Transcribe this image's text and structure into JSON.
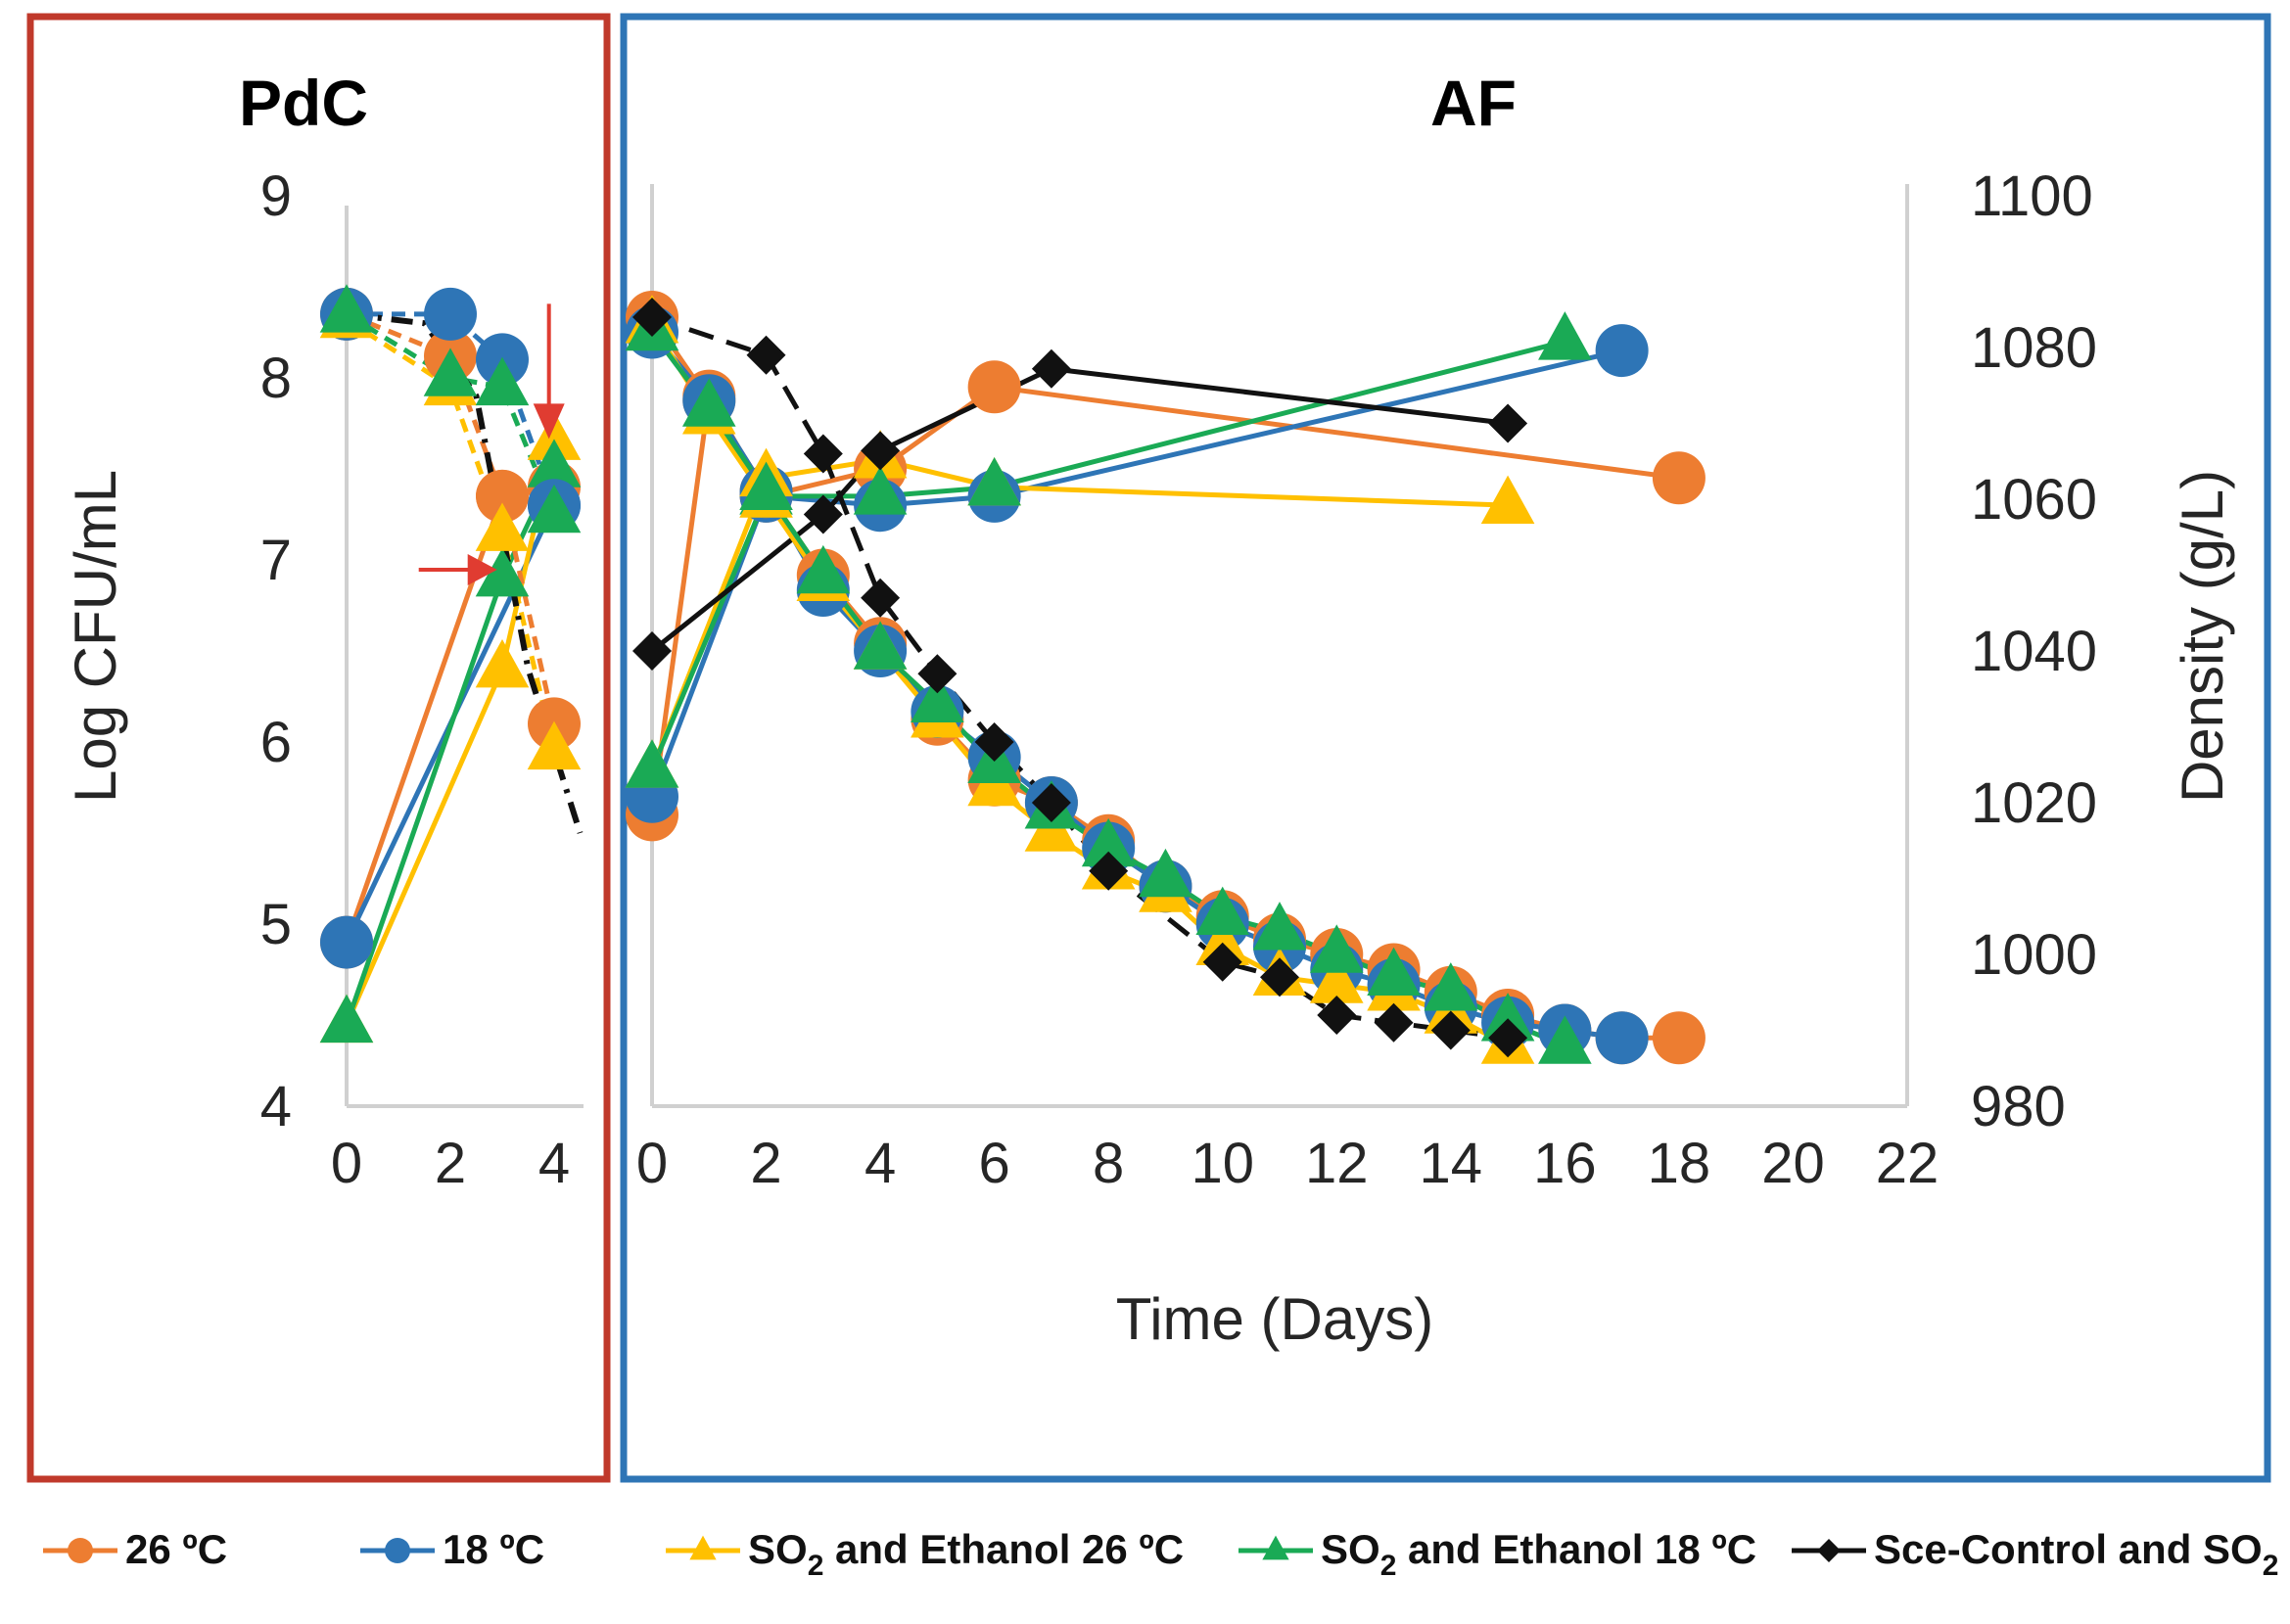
{
  "panels": {
    "left": {
      "title": "PdC",
      "frame_color": "#C0392B"
    },
    "right": {
      "title": "AF",
      "frame_color": "#2E75B6"
    }
  },
  "chart_data": [
    {
      "type": "line",
      "title": "PdC",
      "xlabel": "",
      "ylabel": "Log CFU/mL",
      "x_ticks": [
        "0",
        "2",
        "4"
      ],
      "y_ticks": [
        "4",
        "5",
        "6",
        "7",
        "8",
        "9"
      ],
      "xlim": [
        0,
        4.5
      ],
      "ylim": [
        4,
        9
      ],
      "grid": false,
      "series": [
        {
          "name": "26 ºC",
          "role": "cfu",
          "color": "#ED7D31",
          "marker": "circle",
          "points": [
            [
              0,
              4.9
            ],
            [
              3,
              7.35
            ],
            [
              4,
              7.4
            ]
          ]
        },
        {
          "name": "18 ºC",
          "role": "cfu",
          "color": "#2E75B6",
          "marker": "circle",
          "points": [
            [
              0,
              4.9
            ],
            [
              4,
              7.3
            ]
          ]
        },
        {
          "name": "SO2 and Ethanol 26 ºC",
          "role": "cfu",
          "color": "#FFC000",
          "marker": "triangle",
          "points": [
            [
              0,
              4.45
            ],
            [
              3,
              6.4
            ],
            [
              4,
              7.65
            ]
          ]
        },
        {
          "name": "SO2 and Ethanol 18 ºC",
          "role": "cfu",
          "color": "#1AAA55",
          "marker": "triangle",
          "points": [
            [
              0,
              4.45
            ],
            [
              3,
              6.9
            ],
            [
              4,
              7.5
            ]
          ]
        },
        {
          "name": "26 ºC",
          "role": "density",
          "color": "#ED7D31",
          "marker": "circle",
          "points": [
            [
              0,
              8.35
            ],
            [
              2,
              8.12
            ],
            [
              3,
              7.35
            ],
            [
              4,
              6.1
            ]
          ]
        },
        {
          "name": "18 ºC",
          "role": "density",
          "color": "#2E75B6",
          "marker": "circle",
          "points": [
            [
              0,
              8.35
            ],
            [
              2,
              8.35
            ],
            [
              3,
              8.1
            ],
            [
              4,
              7.3
            ]
          ]
        },
        {
          "name": "SO2 and Ethanol 26 ºC",
          "role": "density",
          "color": "#FFC000",
          "marker": "triangle",
          "points": [
            [
              0,
              8.32
            ],
            [
              2,
              7.95
            ],
            [
              3,
              7.15
            ],
            [
              4,
              5.95
            ]
          ]
        },
        {
          "name": "SO2 and Ethanol 18 ºC",
          "role": "density",
          "color": "#1AAA55",
          "marker": "triangle",
          "points": [
            [
              0,
              8.35
            ],
            [
              2,
              8.0
            ],
            [
              3,
              7.95
            ],
            [
              4,
              7.25
            ]
          ]
        },
        {
          "name": "Sce-Control and SO2",
          "role": "density",
          "color": "#111111",
          "marker": "none",
          "points": [
            [
              0,
              8.35
            ],
            [
              1.5,
              8.3
            ],
            [
              2.5,
              7.9
            ],
            [
              3.5,
              6.4
            ],
            [
              4.5,
              5.5
            ]
          ]
        }
      ],
      "annotations": [
        {
          "type": "arrow",
          "direction": "right",
          "color": "#E03C31",
          "at": [
            2.9,
            7.0
          ]
        },
        {
          "type": "arrow",
          "direction": "down",
          "color": "#E03C31",
          "at": [
            3.9,
            7.6
          ]
        }
      ]
    },
    {
      "type": "line",
      "title": "AF",
      "xlabel": "Time (Days)",
      "ylabel": "Density (g/L)",
      "x_ticks": [
        "0",
        "2",
        "4",
        "6",
        "8",
        "10",
        "12",
        "14",
        "16",
        "18",
        "20",
        "22"
      ],
      "y2_ticks": [
        "980",
        "1000",
        "1020",
        "1040",
        "1060",
        "1080",
        "1100"
      ],
      "xlim": [
        0,
        22
      ],
      "ylim": [
        4,
        9
      ],
      "y2lim": [
        980,
        1100
      ],
      "grid": false,
      "series": [
        {
          "name": "26 ºC",
          "role": "cfu",
          "axis": "left",
          "color": "#ED7D31",
          "marker": "circle",
          "points": [
            [
              0,
              5.6
            ],
            [
              1,
              7.9
            ],
            [
              2,
              7.35
            ],
            [
              4,
              7.5
            ],
            [
              6,
              7.95
            ],
            [
              18,
              7.45
            ]
          ]
        },
        {
          "name": "18 ºC",
          "role": "cfu",
          "axis": "left",
          "color": "#2E75B6",
          "marker": "circle",
          "points": [
            [
              0,
              5.7
            ],
            [
              2,
              7.35
            ],
            [
              4,
              7.3
            ],
            [
              6,
              7.35
            ],
            [
              17,
              8.15
            ]
          ]
        },
        {
          "name": "SO2 and Ethanol 26 ºC",
          "role": "cfu",
          "axis": "left",
          "color": "#FFC000",
          "marker": "triangle",
          "points": [
            [
              0,
              5.85
            ],
            [
              2,
              7.45
            ],
            [
              4,
              7.55
            ],
            [
              6,
              7.4
            ],
            [
              15,
              7.3
            ]
          ]
        },
        {
          "name": "SO2 and Ethanol 18 ºC",
          "role": "cfu",
          "axis": "left",
          "color": "#1AAA55",
          "marker": "triangle",
          "points": [
            [
              0,
              5.85
            ],
            [
              2,
              7.35
            ],
            [
              4,
              7.35
            ],
            [
              6,
              7.4
            ],
            [
              16,
              8.2
            ]
          ]
        },
        {
          "name": "Sce-Control and SO2",
          "role": "cfu",
          "axis": "left",
          "color": "#111111",
          "marker": "diamond",
          "points": [
            [
              0,
              6.5
            ],
            [
              3,
              7.25
            ],
            [
              4,
              7.6
            ],
            [
              7,
              8.05
            ],
            [
              15,
              7.75
            ]
          ]
        },
        {
          "name": "26 ºC",
          "role": "density",
          "axis": "right",
          "color": "#ED7D31",
          "marker": "circle",
          "points": [
            [
              0,
              1084
            ],
            [
              1,
              1073
            ],
            [
              2,
              1061
            ],
            [
              3,
              1050
            ],
            [
              4,
              1041
            ],
            [
              5,
              1031
            ],
            [
              6,
              1023
            ],
            [
              7,
              1020
            ],
            [
              8,
              1015
            ],
            [
              9,
              1009
            ],
            [
              10,
              1005
            ],
            [
              11,
              1002
            ],
            [
              12,
              1000
            ],
            [
              13,
              998
            ],
            [
              14,
              995
            ],
            [
              15,
              992
            ],
            [
              16,
              990
            ],
            [
              17,
              989
            ],
            [
              18,
              989
            ]
          ]
        },
        {
          "name": "18 ºC",
          "role": "density",
          "axis": "right",
          "color": "#2E75B6",
          "marker": "circle",
          "points": [
            [
              0,
              1082
            ],
            [
              1,
              1073
            ],
            [
              2,
              1061
            ],
            [
              3,
              1048
            ],
            [
              4,
              1040
            ],
            [
              5,
              1032
            ],
            [
              6,
              1026
            ],
            [
              7,
              1020
            ],
            [
              8,
              1014
            ],
            [
              9,
              1009
            ],
            [
              10,
              1004
            ],
            [
              11,
              1001
            ],
            [
              12,
              998
            ],
            [
              13,
              996
            ],
            [
              14,
              993
            ],
            [
              15,
              991
            ],
            [
              16,
              990
            ],
            [
              17,
              989
            ]
          ]
        },
        {
          "name": "SO2 and Ethanol 26 ºC",
          "role": "density",
          "axis": "right",
          "color": "#FFC000",
          "marker": "triangle",
          "points": [
            [
              0,
              1083
            ],
            [
              1,
              1071
            ],
            [
              2,
              1060
            ],
            [
              3,
              1049
            ],
            [
              4,
              1040
            ],
            [
              5,
              1031
            ],
            [
              6,
              1022
            ],
            [
              7,
              1016
            ],
            [
              8,
              1011
            ],
            [
              9,
              1008
            ],
            [
              10,
              1001
            ],
            [
              11,
              997
            ],
            [
              12,
              996
            ],
            [
              13,
              995
            ],
            [
              14,
              992
            ],
            [
              15,
              988
            ]
          ]
        },
        {
          "name": "SO2 and Ethanol 18 ºC",
          "role": "density",
          "axis": "right",
          "color": "#1AAA55",
          "marker": "triangle",
          "points": [
            [
              0,
              1082
            ],
            [
              1,
              1072
            ],
            [
              2,
              1061
            ],
            [
              3,
              1050
            ],
            [
              4,
              1040
            ],
            [
              5,
              1033
            ],
            [
              6,
              1025
            ],
            [
              7,
              1019
            ],
            [
              8,
              1014
            ],
            [
              9,
              1010
            ],
            [
              10,
              1005
            ],
            [
              11,
              1003
            ],
            [
              12,
              1000
            ],
            [
              13,
              997
            ],
            [
              14,
              995
            ],
            [
              15,
              991
            ],
            [
              16,
              988
            ]
          ]
        },
        {
          "name": "Sce-Control and SO2",
          "role": "density",
          "axis": "right",
          "color": "#111111",
          "marker": "diamond",
          "points": [
            [
              0,
              1084
            ],
            [
              2,
              1079
            ],
            [
              3,
              1066
            ],
            [
              4,
              1047
            ],
            [
              5,
              1037
            ],
            [
              6,
              1028
            ],
            [
              7,
              1020
            ],
            [
              8,
              1011
            ],
            [
              10,
              999
            ],
            [
              11,
              997
            ],
            [
              12,
              992
            ],
            [
              13,
              991
            ],
            [
              14,
              990
            ],
            [
              15,
              989
            ]
          ]
        }
      ]
    }
  ],
  "legend": {
    "position": "bottom",
    "items": [
      {
        "pre": "26 ºC",
        "sub": "",
        "post": "",
        "color": "#ED7D31",
        "marker": "circle"
      },
      {
        "pre": "18 ºC",
        "sub": "",
        "post": "",
        "color": "#2E75B6",
        "marker": "circle"
      },
      {
        "pre": "SO",
        "sub": "2",
        "post": " and Ethanol 26 ºC",
        "color": "#FFC000",
        "marker": "triangle"
      },
      {
        "pre": "SO",
        "sub": "2",
        "post": " and Ethanol 18 ºC",
        "color": "#1AAA55",
        "marker": "triangle"
      },
      {
        "pre": "Sce-Control and SO",
        "sub": "2",
        "post": "",
        "color": "#111111",
        "marker": "diamond"
      }
    ]
  }
}
